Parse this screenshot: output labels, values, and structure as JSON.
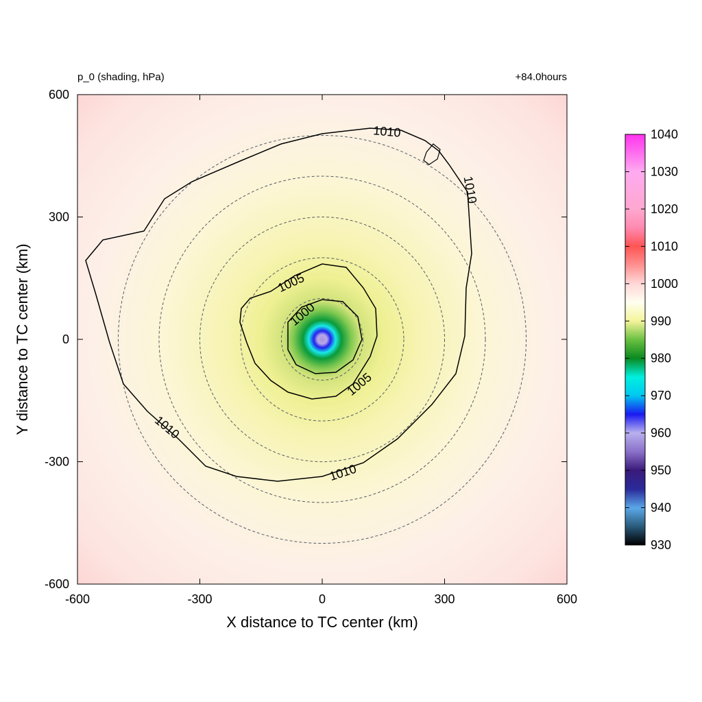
{
  "chart_data": {
    "type": "heatmap",
    "field_label": "p_0 (shading, hPa)",
    "time_label": "+84.0hours",
    "xlabel": "X distance to TC center (km)",
    "ylabel": "Y distance to TC center (km)",
    "xlim": [
      -600,
      600
    ],
    "ylim": [
      -600,
      600
    ],
    "x_ticks": [
      "-600",
      "-300",
      "0",
      "300",
      "600"
    ],
    "y_ticks": [
      "600",
      "300",
      "0",
      "-300",
      "-600"
    ],
    "center_min_pressure_hpa": 960,
    "range_rings_km": [
      100,
      200,
      300,
      400,
      500
    ],
    "contours": [
      {
        "level": "1000",
        "labels": [
          "1000"
        ]
      },
      {
        "level": "1005",
        "labels": [
          "1005",
          "1005"
        ]
      },
      {
        "level": "1010",
        "labels": [
          "1010",
          "1010",
          "1010",
          "1010"
        ]
      }
    ],
    "colorbar": {
      "unit": "hPa",
      "min": 930,
      "max": 1040,
      "ticks": [
        "1040",
        "1030",
        "1020",
        "1010",
        "1000",
        "990",
        "980",
        "970",
        "960",
        "950",
        "940",
        "930"
      ]
    },
    "colors": {
      "c930": "#000000",
      "c940": "#4f9fdf",
      "c950": "#3a1a7a",
      "c960": "#b0a8e8",
      "c970": "#1a1af0",
      "c980": "#00f0f0",
      "c990": "#0a8a20",
      "c1000": "#f4f49a",
      "c1010": "#ffffff",
      "c1020": "#ff5555",
      "c1030": "#ffa8d0",
      "c1040": "#ff33ee"
    }
  }
}
